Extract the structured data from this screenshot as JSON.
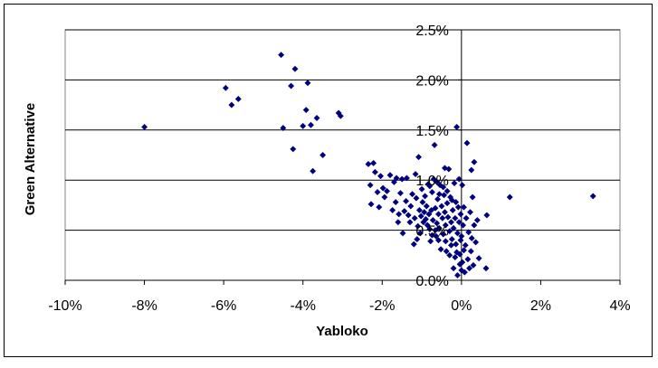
{
  "chart_data": {
    "type": "scatter",
    "title": "",
    "xlabel": "Yabloko",
    "ylabel": "Green Alternative",
    "xlim": [
      -0.1,
      0.04
    ],
    "ylim": [
      0.0,
      0.025
    ],
    "x_ticks": [
      "-10%",
      "-8%",
      "-6%",
      "-4%",
      "-2%",
      "0%",
      "2%",
      "4%"
    ],
    "y_ticks": [
      "0.0%",
      "0.5%",
      "1.0%",
      "1.5%",
      "2.0%",
      "2.5%"
    ],
    "grid": "horizontal",
    "legend": "none",
    "marker_color": "#00007f",
    "series": [
      {
        "marker": "diamond",
        "points": [
          [
            -0.08,
            0.0153
          ],
          [
            -0.0595,
            0.0192
          ],
          [
            -0.058,
            0.0175
          ],
          [
            -0.0563,
            0.0181
          ],
          [
            -0.0455,
            0.0225
          ],
          [
            -0.045,
            0.0152
          ],
          [
            -0.043,
            0.0194
          ],
          [
            -0.042,
            0.0211
          ],
          [
            -0.0425,
            0.0131
          ],
          [
            -0.04,
            0.0154
          ],
          [
            -0.0392,
            0.017
          ],
          [
            -0.0388,
            0.0197
          ],
          [
            -0.038,
            0.0155
          ],
          [
            -0.0375,
            0.0109
          ],
          [
            -0.0365,
            0.0162
          ],
          [
            -0.035,
            0.0125
          ],
          [
            -0.031,
            0.0167
          ],
          [
            -0.0305,
            0.0164
          ],
          [
            -0.0235,
            0.0116
          ],
          [
            -0.023,
            0.0095
          ],
          [
            -0.0228,
            0.0076
          ],
          [
            -0.0222,
            0.0117
          ],
          [
            -0.0218,
            0.0108
          ],
          [
            -0.0212,
            0.0088
          ],
          [
            -0.0208,
            0.0073
          ],
          [
            -0.0204,
            0.0104
          ],
          [
            -0.0198,
            0.0092
          ],
          [
            -0.0194,
            0.0083
          ],
          [
            -0.0188,
            0.0089
          ],
          [
            -0.018,
            0.0105
          ],
          [
            -0.0174,
            0.007
          ],
          [
            -0.017,
            0.0098
          ],
          [
            -0.0166,
            0.0078
          ],
          [
            -0.0164,
            0.0102
          ],
          [
            -0.016,
            0.0058
          ],
          [
            -0.0158,
            0.0066
          ],
          [
            -0.0154,
            0.0087
          ],
          [
            -0.015,
            0.0101
          ],
          [
            -0.0148,
            0.0047
          ],
          [
            -0.0144,
            0.0069
          ],
          [
            -0.014,
            0.0079
          ],
          [
            -0.0138,
            0.0102
          ],
          [
            -0.0134,
            0.0065
          ],
          [
            -0.013,
            0.0058
          ],
          [
            -0.0128,
            0.0074
          ],
          [
            -0.0124,
            0.0086
          ],
          [
            -0.012,
            0.0036
          ],
          [
            -0.0118,
            0.0062
          ],
          [
            -0.0116,
            0.0106
          ],
          [
            -0.0114,
            0.0082
          ],
          [
            -0.0112,
            0.0041
          ],
          [
            -0.011,
            0.0054
          ],
          [
            -0.0108,
            0.0123
          ],
          [
            -0.0106,
            0.007
          ],
          [
            -0.0104,
            0.0047
          ],
          [
            -0.0102,
            0.0064
          ],
          [
            -0.01,
            0.0091
          ],
          [
            -0.0098,
            0.0078
          ],
          [
            -0.0096,
            0.0058
          ],
          [
            -0.0094,
            0.0068
          ],
          [
            -0.0092,
            0.0084
          ],
          [
            -0.009,
            0.0061
          ],
          [
            -0.0088,
            0.0074
          ],
          [
            -0.0086,
            0.0055
          ],
          [
            -0.0084,
            0.0096
          ],
          [
            -0.0082,
            0.0066
          ],
          [
            -0.008,
            0.0051
          ],
          [
            -0.0078,
            0.0039
          ],
          [
            -0.0076,
            0.007
          ],
          [
            -0.0074,
            0.0088
          ],
          [
            -0.0072,
            0.006
          ],
          [
            -0.007,
            0.0101
          ],
          [
            -0.0068,
            0.0135
          ],
          [
            -0.0066,
            0.0072
          ],
          [
            -0.0064,
            0.0044
          ],
          [
            -0.0062,
            0.0057
          ],
          [
            -0.006,
            0.0081
          ],
          [
            -0.0058,
            0.0066
          ],
          [
            -0.0056,
            0.0052
          ],
          [
            -0.0054,
            0.0095
          ],
          [
            -0.0052,
            0.0031
          ],
          [
            -0.005,
            0.0074
          ],
          [
            -0.0048,
            0.0062
          ],
          [
            -0.0046,
            0.0046
          ],
          [
            -0.0044,
            0.0085
          ],
          [
            -0.0042,
            0.0068
          ],
          [
            -0.004,
            0.0055
          ],
          [
            -0.0038,
            0.0029
          ],
          [
            -0.0036,
            0.0077
          ],
          [
            -0.0034,
            0.0063
          ],
          [
            -0.0032,
            0.0111
          ],
          [
            -0.003,
            0.0049
          ],
          [
            -0.0028,
            0.0083
          ],
          [
            -0.0026,
            0.0058
          ],
          [
            -0.0024,
            0.0041
          ],
          [
            -0.0022,
            0.007
          ],
          [
            -0.002,
            0.0052
          ],
          [
            -0.0018,
            0.0097
          ],
          [
            -0.0016,
            0.0062
          ],
          [
            -0.0014,
            0.0036
          ],
          [
            -0.0012,
            0.0153
          ],
          [
            -0.001,
            0.0047
          ],
          [
            -0.0008,
            0.0073
          ],
          [
            -0.0006,
            0.0058
          ],
          [
            -0.0004,
            0.0026
          ],
          [
            -0.0002,
            0.0066
          ],
          [
            0.0,
            0.0044
          ],
          [
            0.0002,
            0.0018
          ],
          [
            0.0004,
            0.0055
          ],
          [
            0.0006,
            0.0073
          ],
          [
            0.0008,
            0.0008
          ],
          [
            0.001,
            0.0035
          ],
          [
            0.0012,
            0.0062
          ],
          [
            0.0014,
            0.0137
          ],
          [
            0.0016,
            0.0021
          ],
          [
            0.0018,
            0.0048
          ],
          [
            0.002,
            0.0012
          ],
          [
            0.0022,
            0.0068
          ],
          [
            0.0024,
            0.0029
          ],
          [
            0.0026,
            0.0042
          ],
          [
            0.0028,
            0.0083
          ],
          [
            0.003,
            0.0015
          ],
          [
            0.0032,
            0.0055
          ],
          [
            0.0036,
            0.0038
          ],
          [
            0.004,
            0.006
          ],
          [
            0.0044,
            0.0022
          ],
          [
            -0.0006,
            0.0101
          ],
          [
            -0.0004,
            0.0016
          ],
          [
            -0.0002,
            0.004
          ],
          [
            0.0002,
            0.0095
          ],
          [
            -0.002,
            0.0012
          ],
          [
            -0.0016,
            0.0023
          ],
          [
            -0.001,
            0.0005
          ],
          [
            0.0,
            0.001
          ],
          [
            -0.003,
            0.0025
          ],
          [
            -0.0026,
            0.0035
          ],
          [
            -0.0012,
            0.0028
          ],
          [
            0.0006,
            0.003
          ],
          [
            -0.0042,
            0.0112
          ],
          [
            -0.0036,
            0.0089
          ],
          [
            -0.0024,
            0.008
          ],
          [
            -0.0014,
            0.0078
          ],
          [
            -0.0062,
            0.0098
          ],
          [
            -0.0056,
            0.0086
          ],
          [
            -0.0046,
            0.0093
          ],
          [
            -0.004,
            0.0039
          ],
          [
            -0.008,
            0.0094
          ],
          [
            -0.0074,
            0.0045
          ],
          [
            -0.0066,
            0.005
          ],
          [
            -0.0058,
            0.004
          ],
          [
            0.0025,
            0.011
          ],
          [
            0.0032,
            0.0118
          ],
          [
            0.0064,
            0.0065
          ],
          [
            0.0062,
            0.0012
          ],
          [
            0.0122,
            0.0083
          ],
          [
            0.0332,
            0.0084
          ]
        ]
      }
    ]
  }
}
